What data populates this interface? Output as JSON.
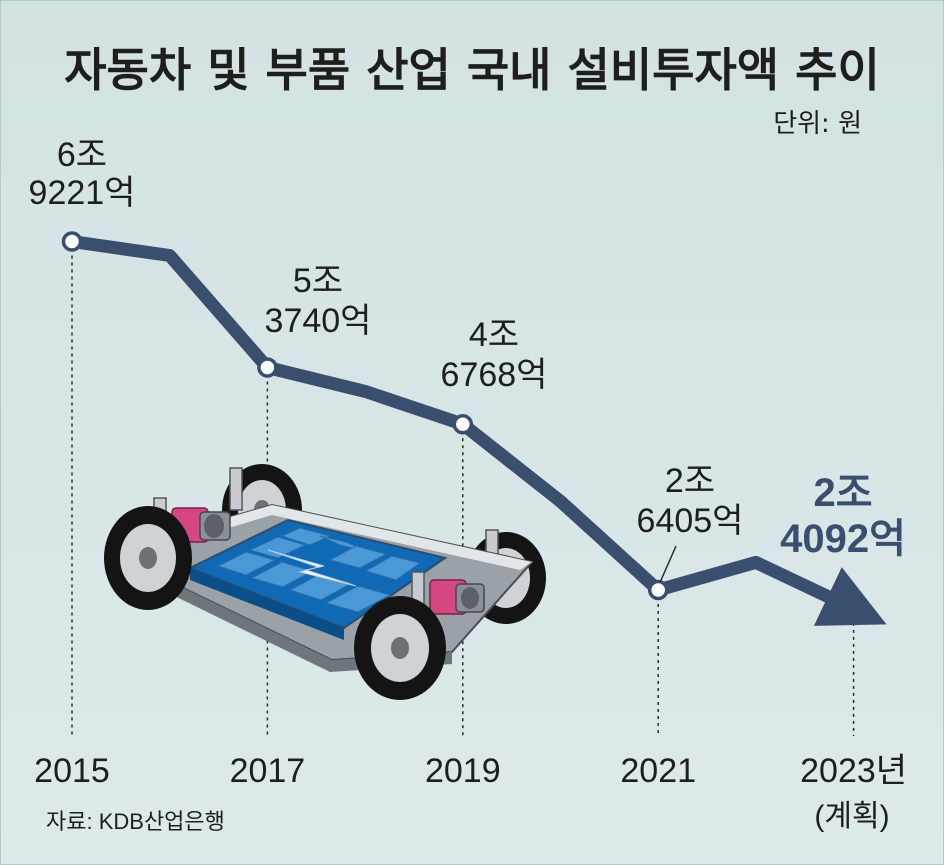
{
  "chart_data": {
    "type": "line",
    "title": "자동차 및 부품 산업 국내 설비투자액 추이",
    "unit_label": "단위: 원",
    "categories": [
      "2015",
      "2017",
      "2019",
      "2021",
      "2023년"
    ],
    "values_krw_eok": [
      69221,
      53740,
      46768,
      26405,
      24092
    ],
    "value_labels": [
      [
        "6조",
        "9221억"
      ],
      [
        "5조",
        "3740억"
      ],
      [
        "4조",
        "6768억"
      ],
      [
        "2조",
        "6405억"
      ],
      [
        "2조",
        "4092억"
      ]
    ],
    "intermediate_years": [
      "2016",
      "2018",
      "2020",
      "2022"
    ],
    "intermediate_values_krw_eok": [
      67500,
      50800,
      37300,
      29800
    ],
    "last_point_note": "(계획)",
    "source": "자료: KDB산업은행",
    "colors": {
      "background": "#d3e2e3",
      "line": "#3a4f6e",
      "highlight_text": "#3a4f6e",
      "text": "#1e1e1e"
    },
    "illustration": "electric-vehicle-battery-platform"
  }
}
